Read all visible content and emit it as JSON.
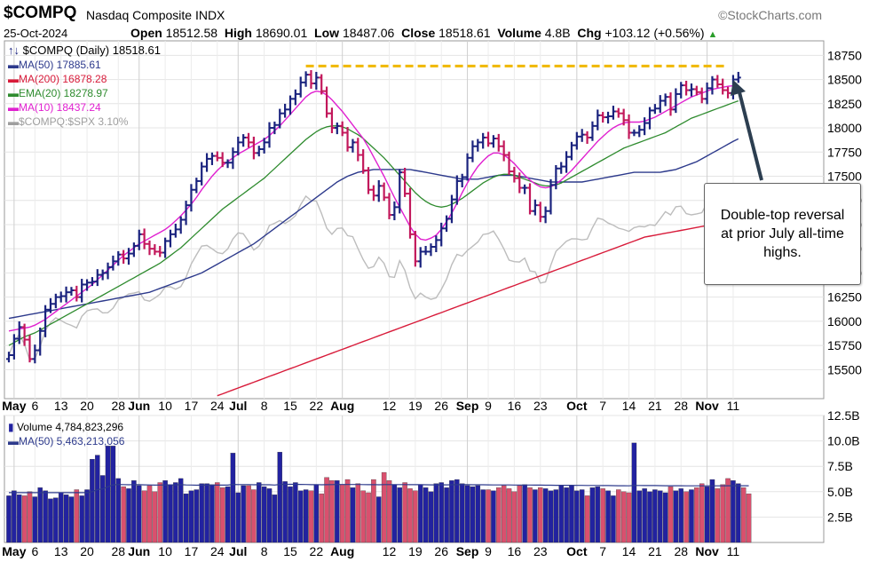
{
  "header": {
    "symbol": "$COMPQ",
    "name": "Nasdaq Composite INDX",
    "date": "25-Oct-2024",
    "open_label": "Open",
    "open": "18512.58",
    "high_label": "High",
    "high": "18690.01",
    "low_label": "Low",
    "low": "18487.06",
    "close_label": "Close",
    "close": "18518.61",
    "volume_label": "Volume",
    "volume": "4.8B",
    "chg_label": "Chg",
    "chg": "+103.12 (+0.56%)",
    "chg_icon": "triangle-up-icon",
    "brand": "©StockCharts.com"
  },
  "legend": {
    "price": "$COMPQ (Daily) 18518.61",
    "ma50": "MA(50) 17885.61",
    "ma200": "MA(200) 16878.28",
    "ema20": "EMA(20) 18278.97",
    "ma10": "MA(10) 18437.24",
    "ratio": "$COMPQ:$SPX 3.10%",
    "volume": "Volume 4,784,823,296",
    "vol_ma50": "MA(50) 5,463,213,056"
  },
  "annotation": "Double-top reversal at prior July all-time highs.",
  "colors": {
    "up_bar": "#1a237e",
    "down_bar": "#c2185b",
    "ma50": "#2d3a8c",
    "ma200": "#d81b3a",
    "ema20": "#2e8b2e",
    "ma10": "#e020d0",
    "ratio": "#bdbdbd",
    "resistance": "#f0b800",
    "arrow": "#2c3e50",
    "vol_up": "#2222a0",
    "vol_down": "#d9506e"
  },
  "chart_data": {
    "type": "ohlc",
    "price_axis": {
      "min": 15200,
      "max": 18900,
      "ticks": [
        15500,
        15750,
        16000,
        16250,
        16500,
        16750,
        17000,
        17250,
        17500,
        17750,
        18000,
        18250,
        18500,
        18750
      ]
    },
    "volume_axis": {
      "unit": "B",
      "min": 0,
      "max": 12.5,
      "ticks": [
        2.5,
        5.0,
        7.5,
        10.0,
        12.5
      ]
    },
    "x_tick_labels": [
      "May",
      "6",
      "13",
      "20",
      "28",
      "Jun",
      "10",
      "17",
      "24",
      "Jul",
      "8",
      "15",
      "22",
      "Aug",
      "12",
      "19",
      "26",
      "Sep",
      "9",
      "16",
      "23",
      "Oct",
      "7",
      "14",
      "21",
      "28",
      "Nov",
      "11"
    ],
    "bold_x_labels": [
      "May",
      "Jun",
      "Jul",
      "Aug",
      "Sep",
      "Oct",
      "Nov"
    ],
    "close": [
      15650,
      15820,
      15940,
      15810,
      15610,
      15700,
      15900,
      16120,
      16180,
      16250,
      16260,
      16300,
      16320,
      16250,
      16380,
      16400,
      16410,
      16480,
      16500,
      16560,
      16620,
      16690,
      16650,
      16700,
      16780,
      16900,
      16800,
      16750,
      16720,
      16710,
      16830,
      16900,
      16950,
      17050,
      17200,
      17360,
      17450,
      17600,
      17680,
      17710,
      17690,
      17640,
      17640,
      17750,
      17850,
      17900,
      17850,
      17740,
      17780,
      17850,
      18000,
      18030,
      18150,
      18190,
      18300,
      18350,
      18470,
      18550,
      18460,
      18520,
      18380,
      18150,
      18000,
      18020,
      17950,
      17800,
      17850,
      17720,
      17560,
      17360,
      17300,
      17400,
      17280,
      17100,
      17180,
      17540,
      17320,
      16900,
      16620,
      16720,
      16720,
      16770,
      16840,
      16960,
      17060,
      17260,
      17450,
      17490,
      17690,
      17810,
      17850,
      17900,
      17840,
      17890,
      17810,
      17720,
      17550,
      17480,
      17380,
      17380,
      17140,
      17200,
      17080,
      17140,
      17410,
      17580,
      17600,
      17700,
      17820,
      17910,
      17930,
      17900,
      18020,
      18130,
      18110,
      18120,
      18170,
      18150,
      18080,
      17950,
      17950,
      17980,
      18050,
      18180,
      18200,
      18280,
      18320,
      18190,
      18350,
      18440,
      18390,
      18400,
      18370,
      18300,
      18410,
      18500,
      18450,
      18390,
      18360,
      18500,
      18520
    ],
    "ma10": [
      15900,
      15910,
      15920,
      15930,
      15940,
      15960,
      15990,
      16020,
      16060,
      16100,
      16140,
      16180,
      16220,
      16260,
      16300,
      16340,
      16380,
      16430,
      16480,
      16530,
      16580,
      16630,
      16680,
      16720,
      16760,
      16800,
      16830,
      16860,
      16890,
      16920,
      16950,
      16990,
      17040,
      17090,
      17150,
      17210,
      17280,
      17360,
      17430,
      17500,
      17560,
      17610,
      17650,
      17690,
      17730,
      17760,
      17790,
      17820,
      17850,
      17880,
      17920,
      17970,
      18020,
      18080,
      18140,
      18200,
      18260,
      18320,
      18360,
      18380,
      18370,
      18340,
      18290,
      18230,
      18170,
      18100,
      18030,
      17960,
      17890,
      17800,
      17700,
      17600,
      17500,
      17390,
      17280,
      17180,
      17080,
      16980,
      16900,
      16850,
      16840,
      16860,
      16890,
      16950,
      17030,
      17120,
      17220,
      17330,
      17430,
      17520,
      17600,
      17660,
      17710,
      17740,
      17740,
      17720,
      17680,
      17630,
      17570,
      17510,
      17460,
      17420,
      17390,
      17380,
      17390,
      17420,
      17460,
      17510,
      17560,
      17620,
      17680,
      17740,
      17800,
      17860,
      17910,
      17960,
      18000,
      18030,
      18050,
      18060,
      18060,
      18060,
      18070,
      18090,
      18110,
      18140,
      18170,
      18200,
      18230,
      18260,
      18290,
      18320,
      18340,
      18360,
      18380,
      18400,
      18410,
      18420,
      18430,
      18435,
      18437
    ],
    "ema20": [
      15750,
      15780,
      15810,
      15840,
      15860,
      15880,
      15910,
      15940,
      15970,
      16000,
      16030,
      16060,
      16090,
      16120,
      16150,
      16180,
      16210,
      16240,
      16270,
      16300,
      16330,
      16360,
      16390,
      16420,
      16450,
      16480,
      16510,
      16540,
      16570,
      16600,
      16640,
      16680,
      16720,
      16760,
      16810,
      16860,
      16910,
      16960,
      17010,
      17060,
      17110,
      17160,
      17200,
      17240,
      17280,
      17320,
      17360,
      17400,
      17440,
      17480,
      17530,
      17580,
      17630,
      17680,
      17730,
      17780,
      17830,
      17880,
      17920,
      17960,
      17990,
      18010,
      18020,
      18020,
      18010,
      17990,
      17960,
      17930,
      17890,
      17840,
      17790,
      17740,
      17690,
      17630,
      17570,
      17510,
      17450,
      17390,
      17330,
      17280,
      17240,
      17210,
      17190,
      17180,
      17190,
      17210,
      17240,
      17270,
      17310,
      17350,
      17390,
      17430,
      17460,
      17490,
      17510,
      17520,
      17520,
      17510,
      17490,
      17470,
      17450,
      17430,
      17410,
      17400,
      17400,
      17410,
      17430,
      17460,
      17490,
      17520,
      17550,
      17580,
      17610,
      17640,
      17670,
      17700,
      17730,
      17760,
      17790,
      17810,
      17830,
      17850,
      17870,
      17890,
      17910,
      17930,
      17950,
      17980,
      18010,
      18040,
      18070,
      18100,
      18120,
      18140,
      18160,
      18180,
      18200,
      18220,
      18240,
      18260,
      18279
    ],
    "ma50": [
      16030,
      16040,
      16050,
      16060,
      16070,
      16080,
      16090,
      16100,
      16110,
      16120,
      16130,
      16140,
      16150,
      16160,
      16170,
      16180,
      16190,
      16200,
      16210,
      16220,
      16230,
      16240,
      16250,
      16260,
      16270,
      16280,
      16290,
      16300,
      16320,
      16340,
      16360,
      16380,
      16400,
      16420,
      16440,
      16460,
      16480,
      16500,
      16530,
      16560,
      16590,
      16620,
      16650,
      16680,
      16710,
      16740,
      16770,
      16800,
      16840,
      16880,
      16920,
      16960,
      17000,
      17040,
      17080,
      17120,
      17160,
      17200,
      17240,
      17280,
      17320,
      17360,
      17400,
      17440,
      17470,
      17500,
      17520,
      17540,
      17550,
      17560,
      17570,
      17570,
      17570,
      17570,
      17570,
      17570,
      17570,
      17570,
      17560,
      17550,
      17540,
      17530,
      17520,
      17510,
      17500,
      17490,
      17480,
      17470,
      17470,
      17470,
      17470,
      17480,
      17490,
      17500,
      17510,
      17510,
      17510,
      17510,
      17500,
      17490,
      17480,
      17470,
      17460,
      17450,
      17440,
      17440,
      17440,
      17440,
      17440,
      17440,
      17440,
      17450,
      17460,
      17470,
      17480,
      17490,
      17500,
      17510,
      17520,
      17530,
      17540,
      17540,
      17540,
      17540,
      17540,
      17540,
      17550,
      17560,
      17570,
      17590,
      17610,
      17630,
      17650,
      17680,
      17710,
      17740,
      17770,
      17800,
      17830,
      17860,
      17886
    ],
    "ma200": [
      null,
      null,
      null,
      null,
      null,
      null,
      null,
      null,
      null,
      null,
      null,
      null,
      null,
      null,
      null,
      null,
      null,
      null,
      null,
      null,
      null,
      null,
      null,
      null,
      null,
      null,
      null,
      null,
      null,
      null,
      null,
      null,
      null,
      null,
      null,
      null,
      null,
      null,
      null,
      null,
      15230,
      15250,
      15270,
      15290,
      15310,
      15330,
      15350,
      15370,
      15390,
      15410,
      15430,
      15450,
      15470,
      15490,
      15510,
      15530,
      15550,
      15570,
      15590,
      15610,
      15630,
      15650,
      15670,
      15690,
      15710,
      15730,
      15750,
      15770,
      15790,
      15810,
      15830,
      15850,
      15870,
      15890,
      15910,
      15930,
      15950,
      15970,
      15990,
      16010,
      16030,
      16050,
      16070,
      16090,
      16110,
      16130,
      16150,
      16170,
      16190,
      16210,
      16230,
      16250,
      16270,
      16290,
      16310,
      16330,
      16350,
      16370,
      16390,
      16410,
      16430,
      16450,
      16470,
      16490,
      16510,
      16530,
      16550,
      16570,
      16590,
      16610,
      16630,
      16650,
      16670,
      16690,
      16710,
      16730,
      16750,
      16770,
      16790,
      16810,
      16830,
      16850,
      16870,
      16880,
      16890,
      16900,
      16910,
      16920,
      16930,
      16940,
      16950,
      16960,
      16970,
      16980,
      16990,
      17000,
      17010,
      17020,
      17030,
      17040,
      17050
    ],
    "volume_b": [
      4.6,
      5.1,
      4.7,
      4.6,
      5.0,
      4.5,
      5.4,
      5.1,
      4.3,
      4.4,
      4.9,
      4.7,
      4.5,
      5.2,
      4.6,
      5.2,
      8.2,
      8.6,
      6.6,
      9.5,
      9.5,
      6.3,
      5.5,
      5.3,
      6.1,
      5.6,
      5.1,
      5.6,
      5.0,
      5.9,
      6.1,
      5.7,
      5.9,
      6.3,
      4.8,
      5.1,
      5.2,
      5.8,
      5.8,
      5.7,
      5.9,
      5.4,
      5.5,
      8.8,
      4.9,
      5.6,
      5.6,
      5.2,
      5.9,
      5.5,
      5.3,
      4.7,
      8.9,
      6.0,
      5.5,
      5.9,
      5.1,
      5.2,
      5.1,
      5.7,
      4.8,
      6.4,
      6.1,
      6.1,
      5.7,
      6.2,
      5.4,
      5.8,
      5.1,
      4.9,
      6.2,
      4.5,
      6.9,
      6.1,
      5.7,
      5.4,
      5.9,
      5.3,
      5.1,
      5.7,
      5.4,
      5.0,
      5.8,
      5.9,
      5.4,
      6.1,
      6.2,
      5.8,
      5.6,
      5.5,
      5.6,
      5.2,
      5.2,
      5.1,
      5.4,
      5.6,
      5.3,
      5.0,
      5.6,
      5.7,
      5.4,
      5.2,
      5.4,
      5.3,
      5.1,
      5.2,
      5.6,
      5.4,
      5.6,
      5.1,
      5.2,
      4.6,
      5.4,
      5.5,
      5.3,
      5.1,
      4.6,
      5.2,
      5.0,
      4.9,
      9.8,
      5.1,
      5.3,
      5.0,
      5.2,
      5.1,
      4.9,
      5.5,
      5.1,
      5.3,
      5.0,
      5.2,
      5.4,
      5.8,
      5.5,
      6.2,
      5.3,
      5.7,
      6.3,
      6.1,
      5.8,
      5.4,
      4.8
    ],
    "resistance_level": 18640
  }
}
